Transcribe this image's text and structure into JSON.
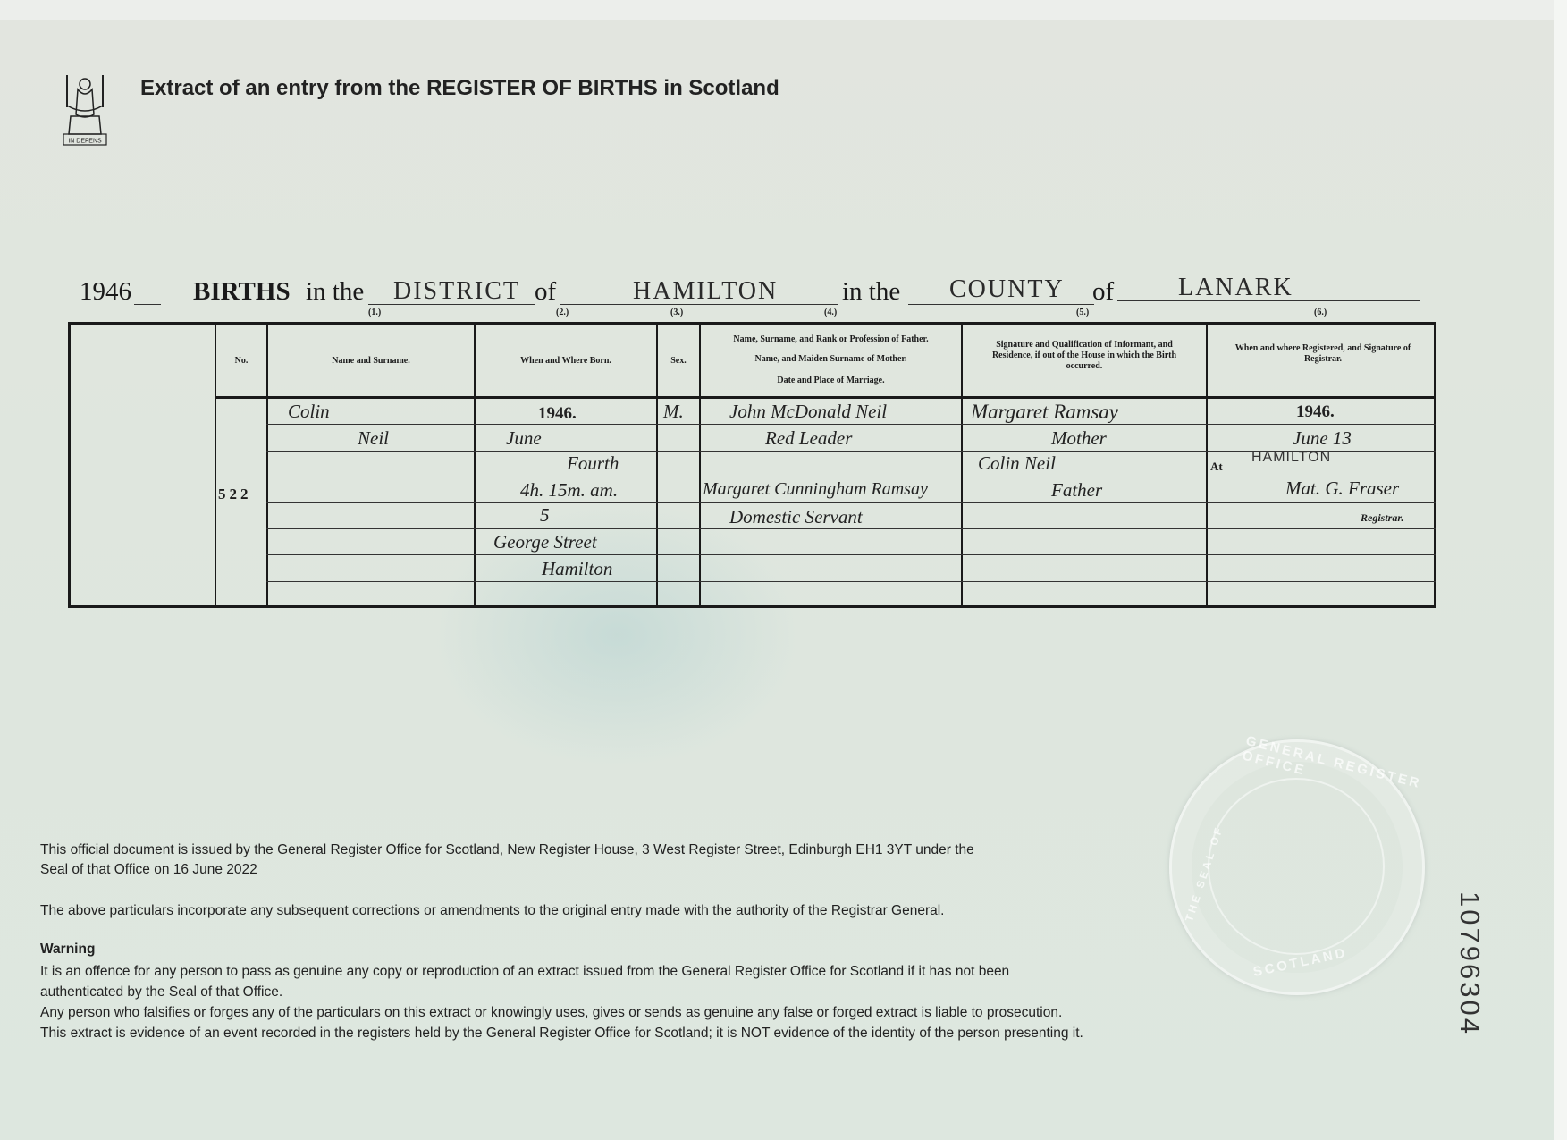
{
  "header": {
    "title": "Extract of an entry from the REGISTER OF BIRTHS in Scotland",
    "logo_motto": "IN DEFENS"
  },
  "register_line": {
    "year": "1946",
    "births_label": "BIRTHS",
    "in_the_1": "in the",
    "district_type": "DISTRICT",
    "of_1": "of",
    "district_name": "HAMILTON",
    "in_the_2": "in the",
    "county_type": "COUNTY",
    "of_2": "of",
    "county_name": "LANARK"
  },
  "columns": {
    "numbers": [
      "(1.)",
      "(2.)",
      "(3.)",
      "(4.)",
      "(5.)",
      "(6.)"
    ],
    "no": "No.",
    "name": "Name and Surname.",
    "born": "When and Where Born.",
    "sex": "Sex.",
    "parents_1": "Name, Surname, and Rank or Profession of Father.",
    "parents_2": "Name, and Maiden Surname of Mother.",
    "parents_3": "Date and Place of Marriage.",
    "informant": "Signature and Qualification of Informant, and Residence, if out of the House in which the Birth occurred.",
    "registered": "When and where Registered, and Signature of Registrar."
  },
  "entry": {
    "number": "522",
    "forename": "Colin",
    "surname": "Neil",
    "born_year": "1946.",
    "born_month": "June",
    "born_day": "Fourth",
    "born_time": "4h. 15m. am.",
    "born_address_1": "5",
    "born_address_2": "George Street",
    "born_address_3": "Hamilton",
    "sex": "M.",
    "father": "John McDonald Neil",
    "father_occupation": "Red Leader",
    "mother": "Margaret Cunningham Ramsay",
    "mother_occupation": "Domestic Servant",
    "informant_1": "Margaret Ramsay",
    "informant_1_qual": "Mother",
    "informant_2": "Colin Neil",
    "informant_2_qual": "Father",
    "reg_year": "1946.",
    "reg_date": "June 13",
    "reg_at_label": "At",
    "reg_place": "HAMILTON",
    "registrar_signature": "Mat. G. Fraser",
    "registrar_label": "Registrar."
  },
  "footer": {
    "issued_1": "This official document is issued by the General Register Office for Scotland, New Register House, 3 West Register Street, Edinburgh EH1 3YT under the",
    "issued_2": "Seal of that Office on 16 June 2022",
    "corrections": "The above particulars incorporate any subsequent corrections or amendments to the original entry made with the authority of the Registrar General.",
    "warning_title": "Warning",
    "warning_1": "It is an offence for any person to pass as genuine any copy or reproduction of an extract issued from the General Register Office for Scotland if it has not been",
    "warning_2": "authenticated by the Seal of that Office.",
    "warning_3": "Any person who falsifies or forges any of the particulars on this extract or knowingly uses, gives or sends as genuine any false or forged extract is liable to prosecution.",
    "warning_4": "This extract is evidence of an event recorded in the registers held by the General Register Office for Scotland; it is NOT evidence of the identity of the person presenting it."
  },
  "serial_number": "10796304",
  "seal": {
    "top_text": "GENERAL REGISTER OFFICE",
    "bottom_text": "SCOTLAND",
    "left_text": "THE SEAL OF"
  }
}
